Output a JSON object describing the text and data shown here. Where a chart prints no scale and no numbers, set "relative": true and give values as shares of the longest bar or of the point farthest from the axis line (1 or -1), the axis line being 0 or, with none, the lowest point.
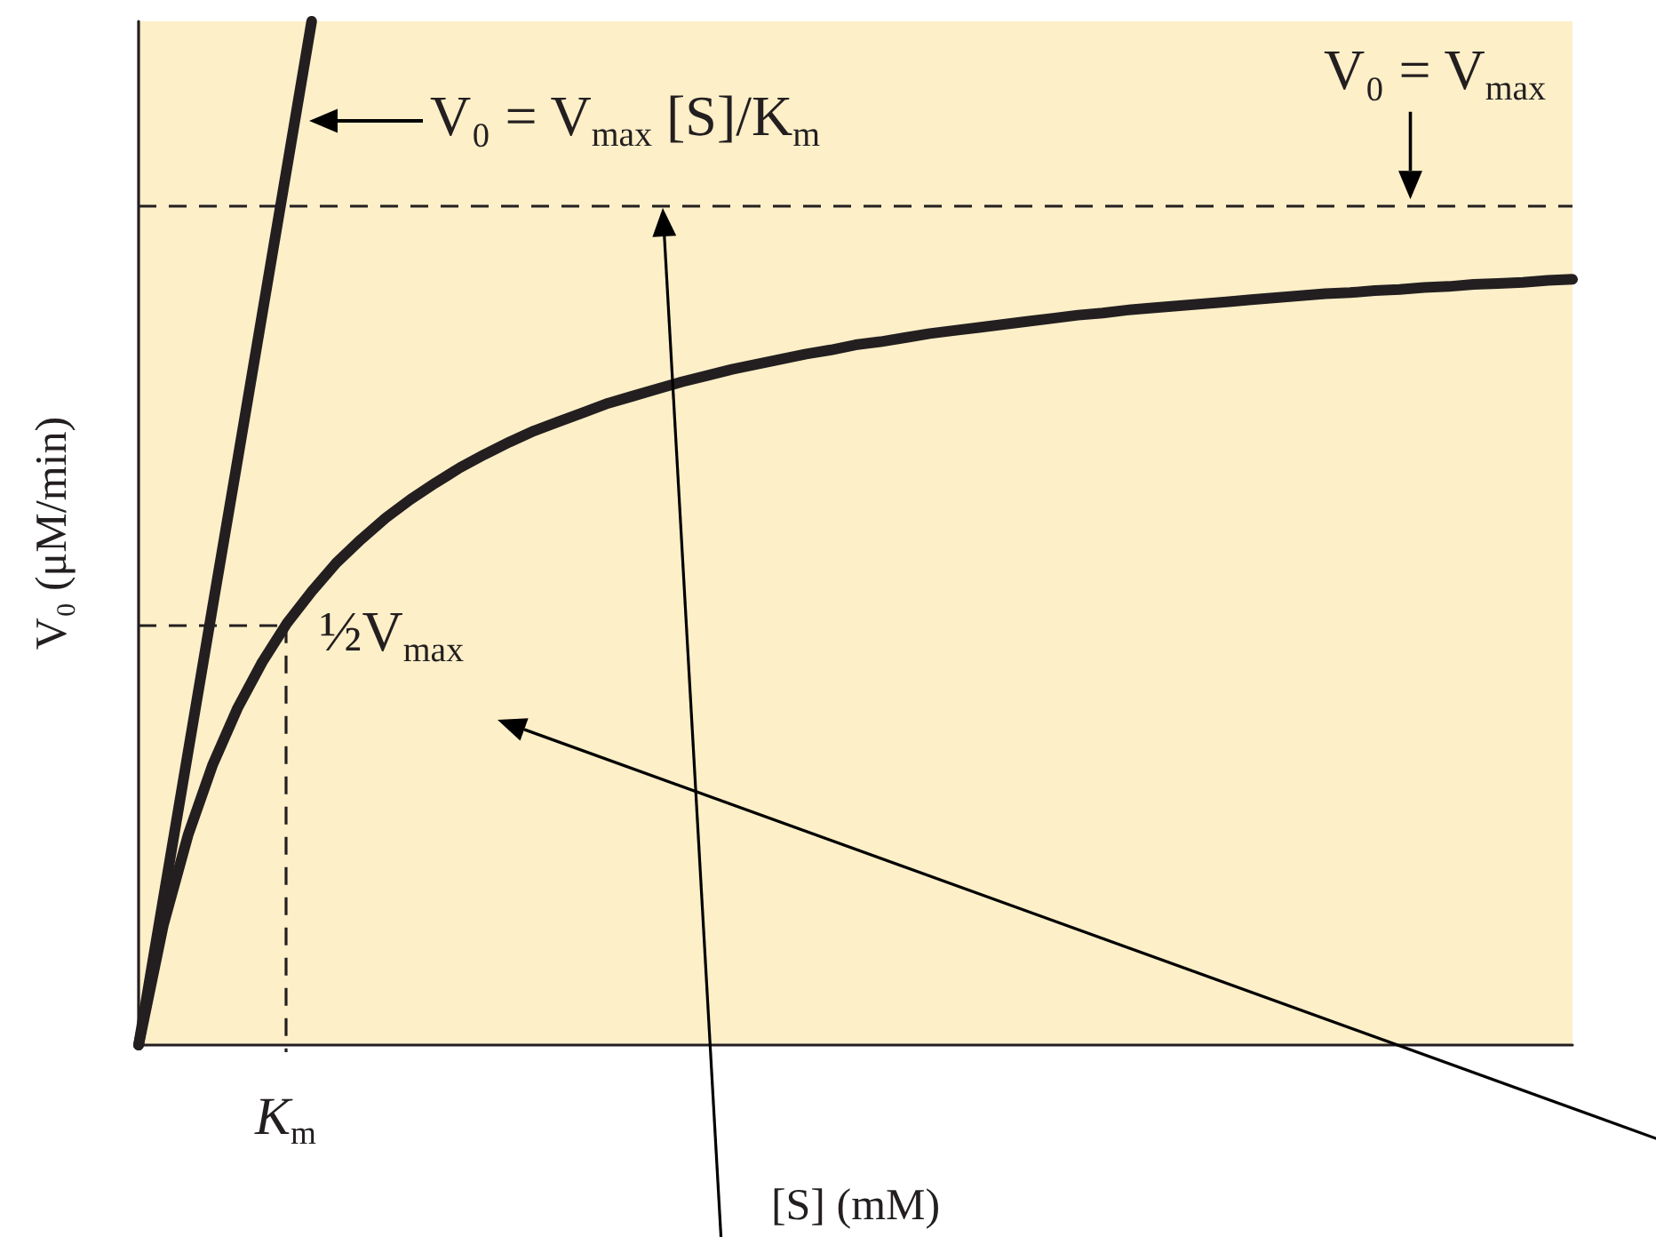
{
  "chart_data": {
    "type": "line",
    "relative": true,
    "xlabel": "[S] (mM)",
    "ylabel": "V₀ (μM/min)",
    "marker": "none",
    "categories": [
      null,
      null,
      null,
      null,
      null,
      null,
      null,
      null,
      null,
      null,
      null,
      null,
      null,
      null,
      null,
      null,
      null,
      null,
      null,
      null,
      null,
      null,
      null,
      null,
      null,
      null,
      null,
      null,
      null,
      null,
      null,
      null,
      null,
      null,
      null,
      null,
      null,
      null,
      null,
      null,
      null,
      null,
      null,
      null,
      null,
      null,
      null,
      null,
      null,
      null,
      null,
      null,
      null,
      null,
      null,
      null,
      null,
      null,
      null
    ],
    "series": [
      {
        "color": "#231f20",
        "values": [
          0,
          0.143,
          0.286,
          0.429,
          0.571,
          0.714,
          0.857,
          1,
          null,
          null,
          null,
          null,
          null,
          null,
          null,
          null,
          null,
          null,
          null,
          null,
          null,
          null,
          null,
          null,
          null,
          null,
          null,
          null,
          null,
          null,
          null,
          null,
          null,
          null,
          null,
          null,
          null,
          null,
          null,
          null,
          null,
          null,
          null,
          null,
          null,
          null,
          null,
          null,
          null,
          null,
          null,
          null,
          null,
          null,
          null,
          null,
          null,
          null,
          null
        ]
      },
      {
        "color": "#231f20",
        "values": [
          0,
          0.117,
          0.205,
          0.274,
          0.329,
          0.374,
          0.412,
          0.443,
          0.471,
          0.494,
          0.515,
          0.533,
          0.549,
          0.564,
          0.577,
          0.589,
          0.6,
          0.609,
          0.618,
          0.627,
          0.634,
          0.641,
          0.648,
          0.654,
          0.66,
          0.665,
          0.67,
          0.675,
          0.679,
          0.684,
          0.687,
          0.691,
          0.695,
          0.698,
          0.701,
          0.704,
          0.707,
          0.71,
          0.713,
          0.715,
          0.718,
          0.72,
          0.722,
          0.724,
          0.726,
          0.728,
          0.73,
          0.732,
          0.734,
          0.735,
          0.737,
          0.738,
          0.74,
          0.741,
          0.743,
          0.744,
          0.745,
          0.747,
          0.748
        ]
      }
    ],
    "ref_lines": [
      {
        "axis": "y",
        "value": 0.821,
        "label": "V₀ = V$_{max}$",
        "color": "#231f20",
        "line_style": "dashed"
      },
      {
        "axis": "y",
        "value": 0.41,
        "label": "½V$_{max}$",
        "color": "#231f20",
        "line_style": "dashed"
      }
    ],
    "annotations": [
      "V₀ = V$_{max}$ [S]/K$_{m}$",
      "K$_{m}$"
    ]
  }
}
